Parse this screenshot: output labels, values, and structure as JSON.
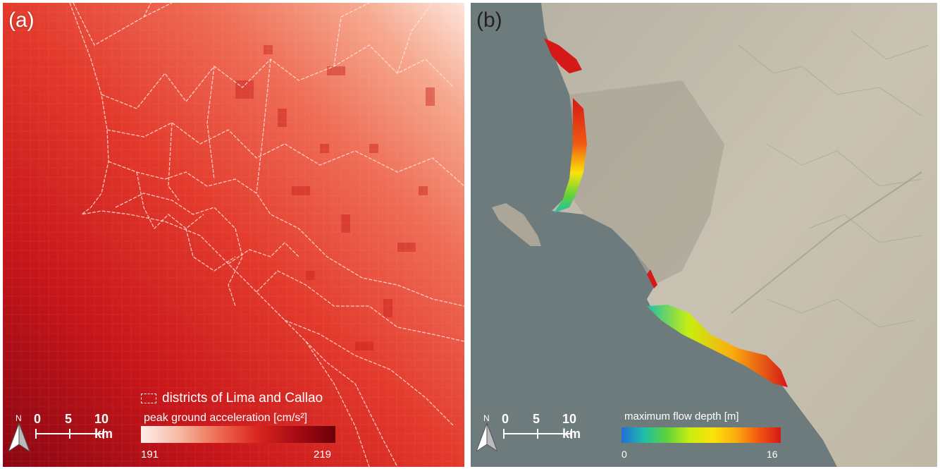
{
  "panel_a": {
    "label": "(a)",
    "north_letter": "N",
    "scale_labels": [
      "0",
      "5",
      "10 km"
    ],
    "legend": {
      "district_label": "districts of Lima and Callao",
      "colorbar_title": "peak ground acceleration [cm/s²]",
      "min": "191",
      "max": "219",
      "colors": [
        "#fdeee8",
        "#f6b8a2",
        "#ee6a52",
        "#d9261e",
        "#a80a14",
        "#6b0008"
      ]
    }
  },
  "panel_b": {
    "label": "(b)",
    "north_letter": "N",
    "scale_labels": [
      "0",
      "5",
      "10 km"
    ],
    "legend": {
      "colorbar_title": "maximum flow depth [m]",
      "min": "0",
      "max": "16",
      "colors": [
        "#1f6fd8",
        "#1fbfa8",
        "#5fd23a",
        "#c8ee10",
        "#fbe30a",
        "#fbae10",
        "#f25a10",
        "#d51818"
      ]
    }
  }
}
